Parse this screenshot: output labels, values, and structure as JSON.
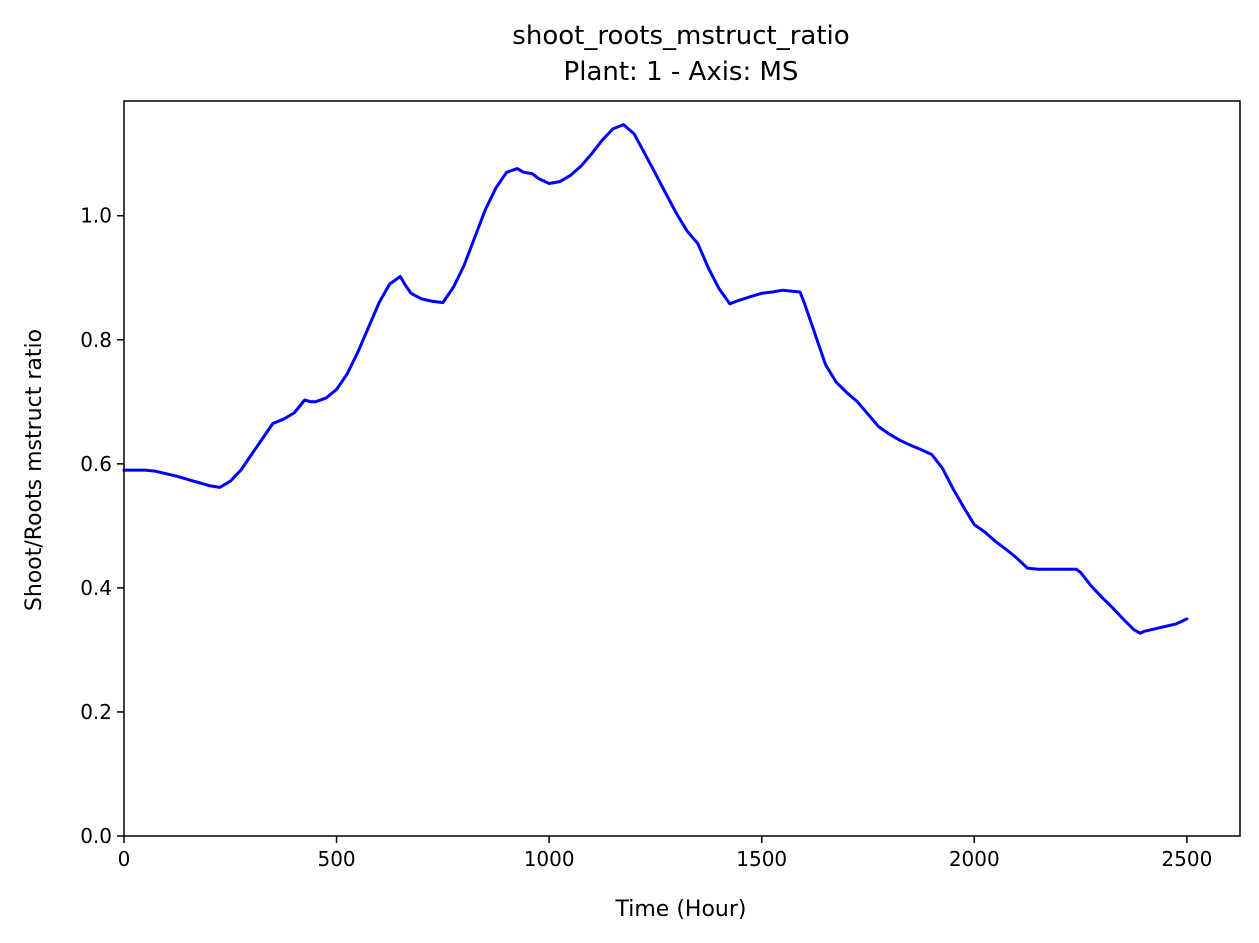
{
  "chart_data": {
    "type": "line",
    "title": "shoot_roots_mstruct_ratio",
    "subtitle": "Plant: 1 - Axis: MS",
    "xlabel": "Time (Hour)",
    "ylabel": "Shoot/Roots mstruct ratio",
    "xlim": [
      0,
      2625
    ],
    "ylim": [
      0,
      1.185
    ],
    "xticks": [
      0,
      500,
      1000,
      1500,
      2000,
      2500
    ],
    "xtick_labels": [
      "0",
      "500",
      "1000",
      "1500",
      "2000",
      "2500"
    ],
    "yticks": [
      0.0,
      0.2,
      0.4,
      0.6,
      0.8,
      1.0
    ],
    "ytick_labels": [
      "0.0",
      "0.2",
      "0.4",
      "0.6",
      "0.8",
      "1.0"
    ],
    "grid": false,
    "series": [
      {
        "name": "shoot_roots_mstruct_ratio",
        "color": "#0000ff",
        "x": [
          0,
          25,
          50,
          75,
          100,
          125,
          150,
          175,
          200,
          225,
          250,
          275,
          300,
          325,
          350,
          375,
          400,
          425,
          440,
          450,
          475,
          500,
          525,
          550,
          575,
          600,
          625,
          650,
          660,
          675,
          700,
          725,
          750,
          775,
          800,
          825,
          850,
          875,
          900,
          925,
          940,
          960,
          975,
          1000,
          1025,
          1050,
          1075,
          1100,
          1125,
          1150,
          1175,
          1200,
          1225,
          1250,
          1275,
          1300,
          1325,
          1350,
          1375,
          1400,
          1425,
          1440,
          1475,
          1500,
          1525,
          1550,
          1575,
          1590,
          1600,
          1625,
          1650,
          1675,
          1700,
          1725,
          1750,
          1775,
          1800,
          1825,
          1850,
          1875,
          1900,
          1925,
          1950,
          1975,
          2000,
          2025,
          2050,
          2075,
          2100,
          2125,
          2150,
          2175,
          2200,
          2225,
          2240,
          2250,
          2275,
          2300,
          2325,
          2350,
          2375,
          2390,
          2400,
          2425,
          2450,
          2475,
          2500
        ],
        "y": [
          0.59,
          0.59,
          0.59,
          0.588,
          0.584,
          0.58,
          0.575,
          0.57,
          0.565,
          0.562,
          0.572,
          0.59,
          0.615,
          0.64,
          0.665,
          0.672,
          0.682,
          0.703,
          0.7,
          0.7,
          0.706,
          0.72,
          0.745,
          0.78,
          0.82,
          0.86,
          0.89,
          0.902,
          0.89,
          0.875,
          0.866,
          0.862,
          0.86,
          0.885,
          0.92,
          0.965,
          1.01,
          1.045,
          1.07,
          1.076,
          1.07,
          1.068,
          1.06,
          1.052,
          1.055,
          1.065,
          1.08,
          1.1,
          1.122,
          1.14,
          1.147,
          1.132,
          1.1,
          1.068,
          1.035,
          1.003,
          0.975,
          0.955,
          0.915,
          0.882,
          0.858,
          0.862,
          0.87,
          0.875,
          0.877,
          0.88,
          0.878,
          0.877,
          0.86,
          0.81,
          0.76,
          0.732,
          0.715,
          0.7,
          0.68,
          0.66,
          0.648,
          0.638,
          0.63,
          0.623,
          0.615,
          0.593,
          0.56,
          0.53,
          0.502,
          0.49,
          0.475,
          0.462,
          0.448,
          0.432,
          0.43,
          0.43,
          0.43,
          0.43,
          0.43,
          0.425,
          0.403,
          0.385,
          0.368,
          0.35,
          0.333,
          0.327,
          0.33,
          0.334,
          0.338,
          0.342,
          0.35
        ]
      }
    ]
  }
}
